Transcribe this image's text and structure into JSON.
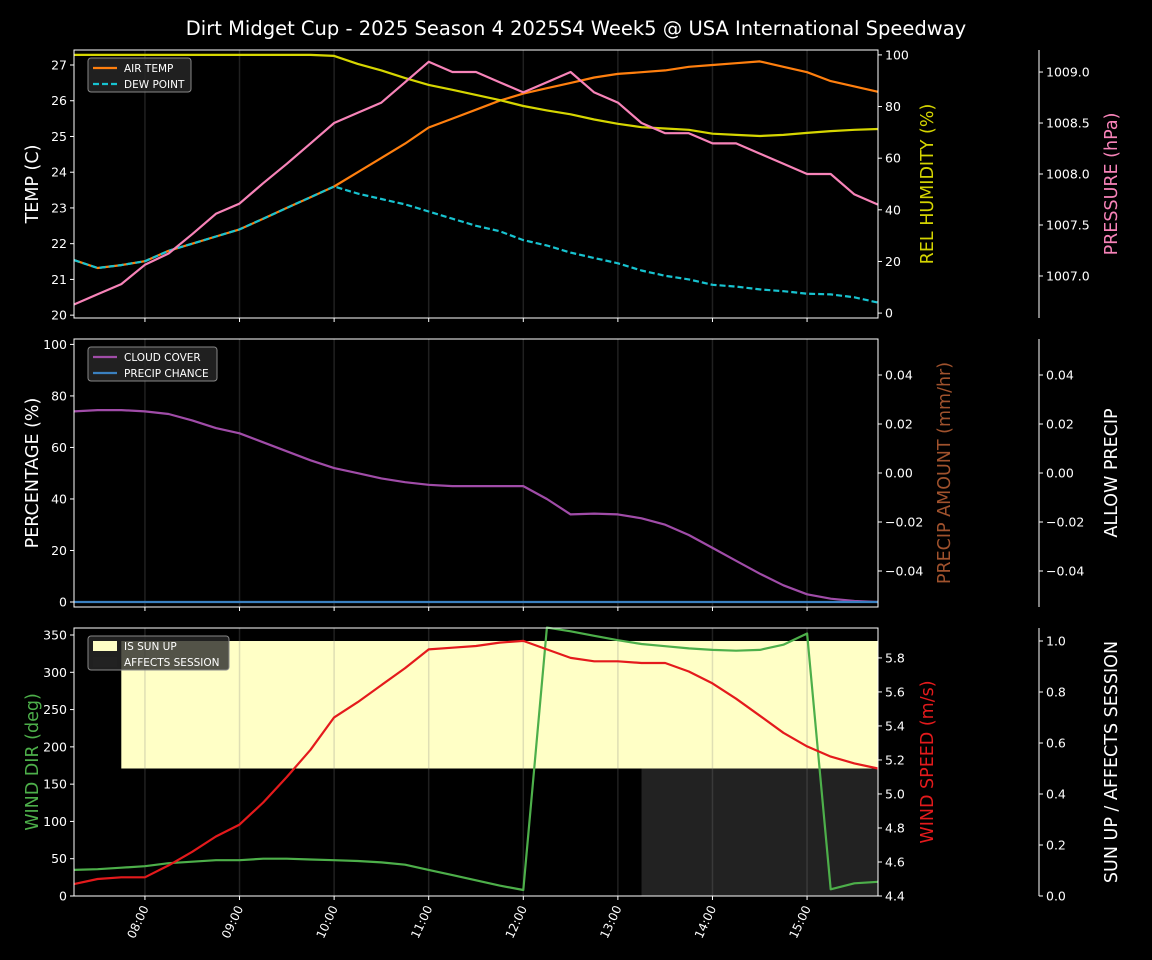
{
  "chart_data": {
    "type": "line",
    "title": "Dirt Midget Cup - 2025 Season 4 2025S4 Week5 @ USA International Speedway",
    "x": [
      "07:15",
      "07:30",
      "07:45",
      "08:00",
      "08:15",
      "08:30",
      "08:45",
      "09:00",
      "09:15",
      "09:30",
      "09:45",
      "10:00",
      "10:15",
      "10:30",
      "10:45",
      "11:00",
      "11:15",
      "11:30",
      "11:45",
      "12:00",
      "12:15",
      "12:30",
      "12:45",
      "13:00",
      "13:15",
      "13:30",
      "13:45",
      "14:00",
      "14:15",
      "14:30",
      "14:45",
      "15:00",
      "15:15",
      "15:30",
      "15:45"
    ],
    "xlim": [
      "07:15",
      "15:45"
    ],
    "xticks": [
      "08:00",
      "09:00",
      "10:00",
      "11:00",
      "12:00",
      "13:00",
      "14:00",
      "15:00"
    ],
    "panels": [
      {
        "name": "temperature",
        "axes": [
          {
            "key": "temp",
            "side": "left",
            "label": "TEMP (C)",
            "color": "#ffffff",
            "ylim": [
              19.92,
              27.42
            ],
            "ticks": [
              20,
              21,
              22,
              23,
              24,
              25,
              26,
              27
            ],
            "tick_labels": [
              "20",
              "21",
              "22",
              "23",
              "24",
              "25",
              "26",
              "27"
            ]
          },
          {
            "key": "hum",
            "side": "right",
            "label": "REL HUMIDITY (%)",
            "color": "#d4d400",
            "ylim": [
              -1.9,
              101.9
            ],
            "ticks": [
              0,
              20,
              40,
              60,
              80,
              100
            ],
            "tick_labels": [
              "0",
              "20",
              "40",
              "60",
              "80",
              "100"
            ]
          },
          {
            "key": "pres",
            "side": "right2",
            "label": "PRESSURE (hPa)",
            "color": "#f783b8",
            "ylim": [
              1006.588,
              1009.216
            ],
            "ticks": [
              1007.0,
              1007.5,
              1008.0,
              1008.5,
              1009.0
            ],
            "tick_labels": [
              "1007.0",
              "1007.5",
              "1008.0",
              "1008.5",
              "1009.0"
            ]
          }
        ],
        "series": [
          {
            "name": "AIR TEMP",
            "axis": "temp",
            "color": "#ff7f0e",
            "dash": false,
            "legend": true,
            "values": [
              21.54,
              21.32,
              21.4,
              21.51,
              21.8,
              22.0,
              22.2,
              22.4,
              22.7,
              23.0,
              23.3,
              23.6,
              24.0,
              24.4,
              24.8,
              25.25,
              25.5,
              25.75,
              26.0,
              26.2,
              26.35,
              26.5,
              26.65,
              26.75,
              26.8,
              26.85,
              26.95,
              27.0,
              27.05,
              27.1,
              26.95,
              26.8,
              26.55,
              26.4,
              26.25
            ]
          },
          {
            "name": "DEW POINT",
            "axis": "temp",
            "color": "#17c3d0",
            "dash": true,
            "legend": true,
            "values": [
              21.54,
              21.32,
              21.4,
              21.51,
              21.8,
              22.0,
              22.2,
              22.4,
              22.7,
              23.0,
              23.3,
              23.6,
              23.4,
              23.25,
              23.1,
              22.9,
              22.7,
              22.5,
              22.35,
              22.1,
              21.95,
              21.75,
              21.6,
              21.45,
              21.25,
              21.1,
              21.0,
              20.85,
              20.8,
              20.72,
              20.67,
              20.6,
              20.58,
              20.5,
              20.35
            ]
          },
          {
            "name": "REL HUMIDITY",
            "axis": "hum",
            "color": "#d6d600",
            "dash": false,
            "legend": false,
            "values": [
              100,
              100,
              100,
              100,
              100,
              100,
              100,
              100,
              100,
              100,
              100,
              99.6,
              96.5,
              94,
              91,
              88.4,
              86.5,
              84.5,
              82.5,
              80.2,
              78.5,
              77,
              75,
              73.3,
              72,
              71.5,
              71,
              69.5,
              69,
              68.6,
              69,
              69.8,
              70.5,
              71,
              71.3
            ]
          },
          {
            "name": "PRESSURE",
            "axis": "pres",
            "color": "#f783b8",
            "dash": false,
            "legend": false,
            "values": [
              1006.72,
              1006.82,
              1006.92,
              1007.11,
              1007.22,
              1007.41,
              1007.61,
              1007.71,
              1007.91,
              1008.1,
              1008.3,
              1008.5,
              1008.6,
              1008.7,
              1008.9,
              1009.1,
              1009.0,
              1009.0,
              1008.9,
              1008.8,
              1008.9,
              1009.0,
              1008.8,
              1008.7,
              1008.5,
              1008.4,
              1008.4,
              1008.3,
              1008.3,
              1008.2,
              1008.1,
              1008.0,
              1008.0,
              1007.8,
              1007.7
            ]
          }
        ],
        "bands": []
      },
      {
        "name": "clouds-precip",
        "axes": [
          {
            "key": "pct",
            "side": "left",
            "label": "PERCENTAGE (%)",
            "color": "#ffffff",
            "ylim": [
              -1.94,
              102.1
            ],
            "ticks": [
              0,
              20,
              40,
              60,
              80,
              100
            ],
            "tick_labels": [
              "0",
              "20",
              "40",
              "60",
              "80",
              "100"
            ]
          },
          {
            "key": "amt",
            "side": "right",
            "label": "PRECIP AMOUNT (mm/hr)",
            "color": "#a0522d",
            "ylim": [
              -0.0547,
              0.0547
            ],
            "ticks": [
              -0.04,
              -0.02,
              0,
              0.02,
              0.04
            ],
            "tick_labels": [
              "−0.04",
              "−0.02",
              "0.00",
              "0.02",
              "0.04"
            ]
          },
          {
            "key": "allow",
            "side": "right2",
            "label": "ALLOW PRECIP",
            "color": "#ffffff",
            "ylim": [
              -0.0547,
              0.0547
            ],
            "ticks": [
              -0.04,
              -0.02,
              0,
              0.02,
              0.04
            ],
            "tick_labels": [
              "−0.04",
              "−0.02",
              "0.00",
              "0.02",
              "0.04"
            ]
          }
        ],
        "series": [
          {
            "name": "CLOUD COVER",
            "axis": "pct",
            "color": "#a04ca8",
            "dash": false,
            "legend": true,
            "values": [
              74,
              74.5,
              74.5,
              74,
              73,
              70.5,
              67.5,
              65.5,
              62,
              58.5,
              55,
              52,
              50,
              48,
              46.5,
              45.5,
              45,
              45,
              45,
              45,
              40,
              34,
              34.3,
              34,
              32.5,
              30,
              26,
              21,
              16,
              11,
              6.5,
              3,
              1.3,
              0.4,
              0
            ]
          },
          {
            "name": "PRECIP CHANCE",
            "axis": "pct",
            "color": "#3a80c0",
            "dash": false,
            "legend": true,
            "values": [
              0,
              0,
              0,
              0,
              0,
              0,
              0,
              0,
              0,
              0,
              0,
              0,
              0,
              0,
              0,
              0,
              0,
              0,
              0,
              0,
              0,
              0,
              0,
              0,
              0,
              0,
              0,
              0,
              0,
              0,
              0,
              0,
              0,
              0,
              0
            ]
          }
        ],
        "bands": []
      },
      {
        "name": "wind-sun",
        "axes": [
          {
            "key": "dir",
            "side": "left",
            "label": "WIND DIR (deg)",
            "color": "#4daf4a",
            "ylim": [
              0,
              359.4
            ],
            "ticks": [
              0,
              50,
              100,
              150,
              200,
              250,
              300,
              350
            ],
            "tick_labels": [
              "0",
              "50",
              "100",
              "150",
              "200",
              "250",
              "300",
              "350"
            ]
          },
          {
            "key": "spd",
            "side": "right",
            "label": "WIND SPEED (m/s)",
            "color": "#e41a1c",
            "ylim": [
              4.4,
              5.976
            ],
            "ticks": [
              4.4,
              4.6,
              4.8,
              5.0,
              5.2,
              5.4,
              5.6,
              5.8
            ],
            "tick_labels": [
              "4.4",
              "4.6",
              "4.8",
              "5.0",
              "5.2",
              "5.4",
              "5.6",
              "5.8"
            ]
          },
          {
            "key": "sun",
            "side": "right2",
            "label": "SUN UP / AFFECTS SESSION",
            "color": "#ffffff",
            "ylim": [
              0,
              1.051
            ],
            "ticks": [
              0,
              0.2,
              0.4,
              0.6,
              0.8,
              1.0
            ],
            "tick_labels": [
              "0.0",
              "0.2",
              "0.4",
              "0.6",
              "0.8",
              "1.0"
            ]
          }
        ],
        "series": [
          {
            "name": "WIND DIR",
            "axis": "dir",
            "color": "#4daf4a",
            "dash": false,
            "legend": false,
            "values": [
              35,
              36,
              38,
              40,
              44,
              46,
              48,
              48,
              50,
              50,
              49,
              48,
              47,
              45,
              42,
              35,
              28,
              21,
              14,
              8,
              360,
              355,
              349,
              343,
              338,
              335,
              332,
              330,
              329,
              330,
              337,
              352,
              9,
              17,
              19
            ]
          },
          {
            "name": "WIND SPEED",
            "axis": "spd",
            "color": "#e41a1c",
            "dash": false,
            "legend": false,
            "values": [
              4.47,
              4.5,
              4.51,
              4.51,
              4.58,
              4.66,
              4.75,
              4.82,
              4.95,
              5.1,
              5.26,
              5.45,
              5.54,
              5.64,
              5.74,
              5.85,
              5.86,
              5.87,
              5.89,
              5.9,
              5.85,
              5.8,
              5.78,
              5.78,
              5.77,
              5.77,
              5.72,
              5.65,
              5.56,
              5.46,
              5.36,
              5.28,
              5.22,
              5.18,
              5.15
            ]
          }
        ],
        "bands": [
          {
            "name": "IS SUN UP",
            "axis": "sun",
            "color": "#ffffc6",
            "range": [
              0.5,
              1.0
            ],
            "values": [
              0,
              0,
              1,
              1,
              1,
              1,
              1,
              1,
              1,
              1,
              1,
              1,
              1,
              1,
              1,
              1,
              1,
              1,
              1,
              1,
              1,
              1,
              1,
              1,
              1,
              1,
              1,
              1,
              1,
              1,
              1,
              1,
              1,
              1,
              1
            ]
          },
          {
            "name": "AFFECTS SESSION",
            "axis": "sun",
            "color": "#222222",
            "range": [
              0,
              0.5
            ],
            "values": [
              0,
              0,
              0,
              0,
              0,
              0,
              0,
              0,
              0,
              0,
              0,
              0,
              0,
              0,
              0,
              0,
              0,
              0,
              0,
              0,
              0,
              0,
              0,
              0,
              1,
              1,
              1,
              1,
              1,
              1,
              1,
              1,
              1,
              1,
              1
            ]
          }
        ]
      }
    ]
  }
}
